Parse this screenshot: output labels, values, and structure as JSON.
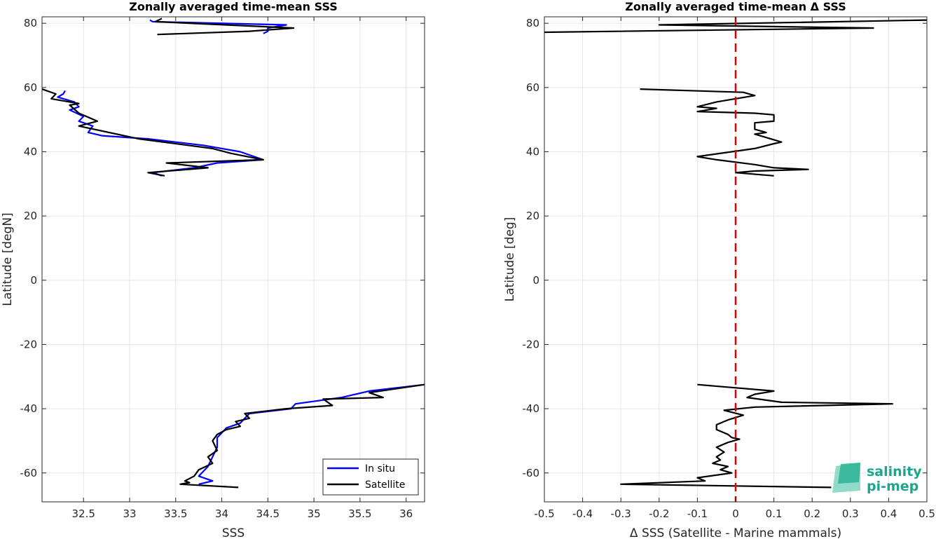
{
  "chart_data": [
    {
      "type": "line",
      "title": "Zonally averaged time-mean SSS",
      "xlabel": "SSS",
      "ylabel": "Latitude [degN]",
      "xlim": [
        32.05,
        36.2
      ],
      "ylim": [
        -69,
        82
      ],
      "xticks": [
        32.5,
        33,
        33.5,
        34,
        34.5,
        35,
        35.5,
        36
      ],
      "xtick_labels": [
        "32.5",
        "33",
        "33.5",
        "34",
        "34.5",
        "35",
        "35.5",
        "36"
      ],
      "yticks": [
        80,
        60,
        40,
        20,
        0,
        -20,
        -40,
        -60
      ],
      "ytick_labels": [
        "80",
        "60",
        "40",
        "20",
        "0",
        "-20",
        "-40",
        "-60"
      ],
      "grid": true,
      "legend": {
        "position": "bottom-right",
        "entries": [
          "In situ",
          "Satellite"
        ]
      },
      "series": [
        {
          "name": "In situ",
          "color": "#0000ff",
          "segments": [
            [
              [
                33.22,
                81
              ],
              [
                33.25,
                80.5
              ],
              [
                34.7,
                79.5
              ],
              [
                34.5,
                78.5
              ],
              [
                34.5,
                77.5
              ],
              [
                34.45,
                76.8
              ]
            ],
            [
              [
                32.3,
                59
              ],
              [
                32.28,
                58
              ],
              [
                32.22,
                57
              ],
              [
                32.4,
                55.5
              ],
              [
                32.45,
                54
              ],
              [
                32.35,
                53
              ],
              [
                32.5,
                51
              ],
              [
                32.45,
                49.5
              ],
              [
                32.6,
                48
              ],
              [
                32.55,
                46
              ],
              [
                32.7,
                45
              ],
              [
                33.2,
                44
              ],
              [
                33.8,
                42
              ],
              [
                34.2,
                40
              ],
              [
                34.45,
                37.5
              ],
              [
                33.95,
                36.5
              ],
              [
                33.7,
                35
              ],
              [
                33.25,
                33.5
              ],
              [
                33.35,
                32.5
              ]
            ],
            [
              [
                36.2,
                -32.5
              ],
              [
                35.6,
                -34.5
              ],
              [
                35.3,
                -36.5
              ],
              [
                34.8,
                -38.5
              ],
              [
                34.75,
                -40
              ],
              [
                34.3,
                -41.5
              ],
              [
                34.25,
                -43
              ],
              [
                34.2,
                -44.5
              ],
              [
                34.05,
                -46
              ],
              [
                34.0,
                -47.5
              ],
              [
                33.95,
                -49
              ],
              [
                33.95,
                -52
              ],
              [
                33.9,
                -55
              ],
              [
                33.85,
                -58
              ],
              [
                33.75,
                -61
              ],
              [
                33.9,
                -62.5
              ],
              [
                33.75,
                -63.5
              ]
            ]
          ]
        },
        {
          "name": "Satellite",
          "color": "#000000",
          "segments": [
            [
              [
                33.35,
                81.5
              ],
              [
                33.28,
                80.5
              ],
              [
                34.78,
                78.5
              ],
              [
                34.3,
                77.5
              ],
              [
                33.3,
                76.5
              ]
            ],
            [
              [
                32.05,
                59.5
              ],
              [
                32.2,
                58
              ],
              [
                32.15,
                56.5
              ],
              [
                32.45,
                55
              ],
              [
                32.35,
                54.5
              ],
              [
                32.45,
                52
              ],
              [
                32.65,
                49.5
              ],
              [
                32.45,
                48
              ],
              [
                33.1,
                44
              ],
              [
                33.9,
                41
              ],
              [
                34.1,
                39.5
              ],
              [
                34.45,
                37.5
              ],
              [
                33.4,
                36.5
              ],
              [
                33.85,
                35
              ],
              [
                33.2,
                33.5
              ],
              [
                33.38,
                32.5
              ]
            ],
            [
              [
                36.2,
                -32.5
              ],
              [
                35.6,
                -35
              ],
              [
                35.75,
                -36.5
              ],
              [
                35.1,
                -37
              ],
              [
                35.2,
                -39
              ],
              [
                34.7,
                -40
              ],
              [
                34.25,
                -41.5
              ],
              [
                34.3,
                -43
              ],
              [
                34.15,
                -44
              ],
              [
                34.2,
                -45.5
              ],
              [
                34.05,
                -46.5
              ],
              [
                33.95,
                -48
              ],
              [
                33.9,
                -50
              ],
              [
                33.95,
                -53
              ],
              [
                33.85,
                -55
              ],
              [
                33.9,
                -57
              ],
              [
                33.75,
                -59
              ],
              [
                33.7,
                -61
              ],
              [
                33.6,
                -62.5
              ],
              [
                33.65,
                -63
              ],
              [
                33.55,
                -63.5
              ],
              [
                34.18,
                -64.5
              ]
            ]
          ]
        }
      ]
    },
    {
      "type": "line",
      "title": "Zonally averaged time-mean Δ SSS",
      "xlabel": "Δ SSS (Satellite - Marine mammals)",
      "ylabel": "Latitude [deg]",
      "xlim": [
        -0.5,
        0.5
      ],
      "ylim": [
        -69,
        82
      ],
      "xticks": [
        -0.5,
        -0.4,
        -0.3,
        -0.2,
        -0.1,
        0,
        0.1,
        0.2,
        0.3,
        0.4,
        0.5
      ],
      "xtick_labels": [
        "-0.5",
        "-0.4",
        "-0.3",
        "-0.2",
        "-0.1",
        "0",
        "0.1",
        "0.2",
        "0.3",
        "0.4",
        "0.5"
      ],
      "yticks": [
        80,
        60,
        40,
        20,
        0,
        -20,
        -40,
        -60
      ],
      "ytick_labels": [
        "80",
        "60",
        "40",
        "20",
        "0",
        "-20",
        "-40",
        "-60"
      ],
      "grid": true,
      "reference_line": {
        "x": 0,
        "color": "#e00000",
        "style": "dashed"
      },
      "series": [
        {
          "color": "#000000",
          "segments": [
            [
              [
                0.5,
                81
              ],
              [
                -0.2,
                79.5
              ],
              [
                0.36,
                78.5
              ],
              [
                -0.5,
                77.2
              ]
            ],
            [
              [
                -0.25,
                59.5
              ],
              [
                0.02,
                58.5
              ],
              [
                0.05,
                57.5
              ],
              [
                -0.05,
                55.5
              ],
              [
                -0.1,
                54
              ],
              [
                -0.05,
                53.5
              ],
              [
                -0.1,
                52.5
              ],
              [
                0.05,
                52
              ],
              [
                0.1,
                51.5
              ],
              [
                0.1,
                49.5
              ],
              [
                0.05,
                49
              ],
              [
                0.05,
                47
              ],
              [
                0.08,
                46
              ],
              [
                0.05,
                45.5
              ],
              [
                0.12,
                43
              ],
              [
                0.1,
                42.5
              ],
              [
                0.05,
                41
              ],
              [
                -0.1,
                38.5
              ],
              [
                -0.05,
                37.5
              ],
              [
                0.05,
                36
              ],
              [
                0.1,
                35
              ],
              [
                0.19,
                34.5
              ],
              [
                0.05,
                34
              ],
              [
                0,
                33.5
              ],
              [
                0.1,
                32.5
              ]
            ],
            [
              [
                -0.1,
                -32.5
              ],
              [
                0.1,
                -34.5
              ],
              [
                0.05,
                -35.5
              ],
              [
                0.03,
                -36.5
              ],
              [
                0.12,
                -38
              ],
              [
                0.41,
                -38.5
              ],
              [
                0.05,
                -39.5
              ],
              [
                -0.03,
                -40.5
              ],
              [
                0.02,
                -42
              ],
              [
                -0.02,
                -43.5
              ],
              [
                -0.05,
                -45
              ],
              [
                -0.05,
                -46.5
              ],
              [
                -0.02,
                -48
              ],
              [
                -0.01,
                -49
              ],
              [
                0.01,
                -49.5
              ],
              [
                -0.02,
                -50.5
              ],
              [
                -0.05,
                -52
              ],
              [
                -0.03,
                -53.5
              ],
              [
                -0.05,
                -55
              ],
              [
                -0.04,
                -56
              ],
              [
                -0.06,
                -57
              ],
              [
                -0.02,
                -58
              ],
              [
                -0.04,
                -59
              ],
              [
                -0.01,
                -60
              ],
              [
                -0.1,
                -61.5
              ],
              [
                -0.08,
                -62.5
              ],
              [
                -0.3,
                -63.5
              ],
              [
                0.25,
                -64.5
              ]
            ]
          ]
        }
      ]
    }
  ],
  "logo": {
    "line1": "salinity",
    "line2": "pi-mep",
    "color": "#1fa58c"
  }
}
